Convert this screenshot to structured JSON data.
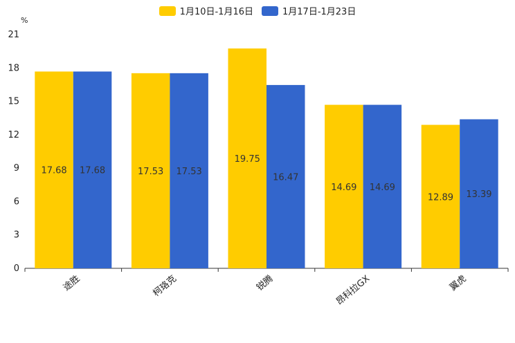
{
  "chart_data": {
    "type": "bar",
    "ylabel": "%",
    "ylim": [
      0,
      21
    ],
    "yticks": [
      0,
      3,
      6,
      9,
      12,
      15,
      18,
      21
    ],
    "categories": [
      "途胜",
      "柯珞克",
      "锐腾",
      "昂科拉GX",
      "翼虎"
    ],
    "series": [
      {
        "name": "1月10日-1月16日",
        "color": "#FFCC00",
        "values": [
          17.68,
          17.53,
          19.75,
          14.69,
          12.89
        ]
      },
      {
        "name": "1月17日-1月23日",
        "color": "#3366CC",
        "values": [
          17.68,
          17.53,
          16.47,
          14.69,
          13.39
        ]
      }
    ],
    "legend_position": "top-center",
    "grid": false
  }
}
